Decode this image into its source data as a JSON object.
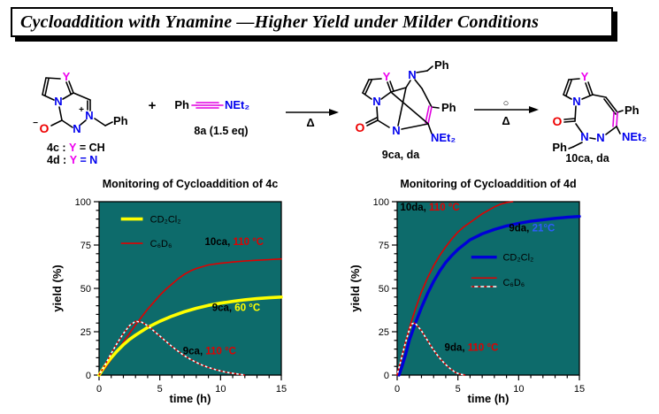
{
  "title": "Cycloaddition with Ynamine —Higher Yield under Milder Conditions",
  "scheme": {
    "mol4": {
      "y_label": "Y",
      "n_ring": "N",
      "n_plus": "N",
      "plus_charge": "+",
      "o_label": "O",
      "minus_charge": "−",
      "ph": "Ph",
      "cap1": {
        "pre": "4c : ",
        "y": "Y",
        "post": " = CH"
      },
      "cap2": {
        "pre": "4d : ",
        "y": "Y",
        "post": " = N"
      }
    },
    "plus": "+",
    "reagent": {
      "ph": "Ph",
      "amine": "NEt₂",
      "caption": "8a (1.5 eq)"
    },
    "arrow1": {
      "below": "Δ"
    },
    "mol9": {
      "y_label": "Y",
      "n_top": "N",
      "n_ring": "N",
      "n_bottom": "N",
      "o_label": "O",
      "ph_top": "Ph",
      "ph_right": "Ph",
      "amine": "NEt₂",
      "caption": "9ca, da"
    },
    "arrow2": {
      "above": "○",
      "below": "Δ"
    },
    "mol10": {
      "y_label": "Y",
      "n_ring": "N",
      "n1": "N",
      "n2": "N",
      "o_label": "O",
      "ph_right": "Ph",
      "ph_benzyl": "Ph",
      "amine": "NEt₂",
      "caption": "10ca, da"
    }
  },
  "chart_data": [
    {
      "type": "line",
      "title": "Monitoring of Cycloaddition of 4c",
      "xlabel": "time (h)",
      "ylabel": "yield (%)",
      "xlim": [
        0,
        15
      ],
      "ylim": [
        0,
        100
      ],
      "xticks": [
        0,
        5,
        10,
        15
      ],
      "x_minor_step": 1,
      "yticks": [
        0,
        25,
        50,
        75,
        100
      ],
      "y_minor_step": 5,
      "plot_bg": "#0d6b6b",
      "series": [
        {
          "name": "10ca at 110 °C in C₆D₆",
          "color": "#e00000",
          "width": 1.6,
          "style": "solid",
          "x": [
            0,
            0.5,
            1,
            1.5,
            2,
            2.5,
            3,
            3.5,
            4,
            4.5,
            5,
            5.5,
            6,
            6.5,
            7,
            7.5,
            8,
            9,
            10,
            11,
            12,
            13,
            14,
            15
          ],
          "y": [
            0,
            4,
            9,
            14,
            19,
            24,
            29,
            33.5,
            38,
            42,
            46,
            49.5,
            52.5,
            55.5,
            58,
            60,
            61.5,
            63.5,
            64.5,
            65.2,
            65.8,
            66.2,
            66.6,
            67
          ]
        },
        {
          "name": "9ca at 60 °C in CD₂Cl₂",
          "color": "#ffff00",
          "width": 3.6,
          "style": "solid",
          "x": [
            0,
            0.5,
            1,
            1.5,
            2,
            2.5,
            3,
            4,
            5,
            6,
            7,
            8,
            9,
            10,
            11,
            12,
            13,
            14,
            15
          ],
          "y": [
            0,
            5.5,
            10,
            14,
            17.5,
            20.5,
            23,
            27.5,
            31,
            34,
            36.5,
            38.5,
            40.2,
            41.5,
            42.5,
            43.4,
            44.1,
            44.6,
            45
          ]
        },
        {
          "name": "9ca at 110 °C in C₆D₆",
          "color": "#e00000",
          "width": 1.6,
          "style": "dashed-white",
          "x": [
            0,
            0.5,
            1,
            1.5,
            2,
            2.5,
            3,
            3.5,
            4,
            4.5,
            5,
            5.5,
            6,
            6.5,
            7,
            7.5,
            8,
            8.5,
            9,
            9.5,
            10,
            10.5,
            11,
            11.5,
            12
          ],
          "y": [
            0,
            6,
            12.5,
            18.5,
            24,
            28.5,
            31,
            30.5,
            28.5,
            25.5,
            22.5,
            19.5,
            16.5,
            13.8,
            11.3,
            9.2,
            7.3,
            5.7,
            4.4,
            3.3,
            2.4,
            1.6,
            1,
            0.5,
            0
          ]
        }
      ],
      "legend": [
        {
          "label": "CD₂Cl₂",
          "color": "#ffff00",
          "width": 3.6,
          "x1": 1.8,
          "x2": 3.6,
          "lx": 4.2,
          "y": 90
        },
        {
          "label": "C₆D₆",
          "color": "#e00000",
          "width": 1.6,
          "x1": 1.8,
          "x2": 3.6,
          "lx": 4.2,
          "y": 76
        }
      ],
      "annotations": [
        {
          "x": 8.7,
          "y": 75,
          "parts": [
            {
              "text": "10ca",
              "color": "#000000"
            },
            {
              "text": ", ",
              "color": "#000000"
            },
            {
              "text": "110 °C",
              "color": "#e00000"
            }
          ]
        },
        {
          "x": 9.3,
          "y": 37,
          "parts": [
            {
              "text": "9ca",
              "color": "#000000"
            },
            {
              "text": ", ",
              "color": "#000000"
            },
            {
              "text": "60 °C",
              "color": "#ffff00"
            }
          ]
        },
        {
          "x": 6.9,
          "y": 12,
          "parts": [
            {
              "text": "9ca",
              "color": "#000000"
            },
            {
              "text": ", ",
              "color": "#000000"
            },
            {
              "text": "110 °C",
              "color": "#e00000"
            }
          ]
        }
      ]
    },
    {
      "type": "line",
      "title": "Monitoring of Cycloaddition of 4d",
      "xlabel": "time (h)",
      "ylabel": "yield (%)",
      "xlim": [
        0,
        15
      ],
      "ylim": [
        0,
        100
      ],
      "xticks": [
        0,
        5,
        10,
        15
      ],
      "x_minor_step": 1,
      "yticks": [
        0,
        25,
        50,
        75,
        100
      ],
      "y_minor_step": 5,
      "plot_bg": "#0d6b6b",
      "series": [
        {
          "name": "10da at 110 °C in C₆D₆",
          "color": "#e00000",
          "width": 1.6,
          "style": "solid",
          "x": [
            0,
            0.25,
            0.5,
            1,
            1.5,
            2,
            2.5,
            3,
            3.5,
            4,
            4.5,
            5,
            5.5,
            6,
            6.5,
            7,
            7.5,
            8,
            8.5,
            9,
            9.5
          ],
          "y": [
            0,
            7,
            14,
            27,
            38,
            48,
            56,
            63,
            69,
            74,
            78.5,
            82.5,
            85.5,
            88,
            90.5,
            93,
            95,
            97,
            98.5,
            99.5,
            100
          ]
        },
        {
          "name": "9da at 21 °C in CD₂Cl₂",
          "color": "#0000d8",
          "width": 3.4,
          "style": "solid",
          "x": [
            0.15,
            0.4,
            0.7,
            1,
            1.5,
            2,
            2.5,
            3,
            3.5,
            4,
            4.5,
            5,
            6,
            7,
            8,
            9,
            10,
            11,
            12,
            13,
            14,
            15
          ],
          "y": [
            0,
            5,
            12,
            20,
            30,
            39,
            47,
            54,
            60,
            65,
            69,
            72.5,
            78,
            81.5,
            84,
            86,
            87.5,
            88.7,
            89.6,
            90.4,
            91,
            91.5
          ]
        },
        {
          "name": "9da at 110 °C in C₆D₆",
          "color": "#e00000",
          "width": 1.6,
          "style": "dashed-white",
          "x": [
            0,
            0.2,
            0.4,
            0.6,
            0.8,
            1,
            1.2,
            1.4,
            1.6,
            2,
            2.4,
            2.8,
            3.2,
            3.6,
            4,
            4.4,
            4.8,
            5.2,
            5.6
          ],
          "y": [
            0,
            5.5,
            11,
            16.5,
            21.5,
            26,
            29.5,
            30,
            29,
            25.5,
            21,
            16.5,
            12.5,
            9,
            6,
            3.5,
            1.5,
            0.5,
            0
          ]
        }
      ],
      "legend": [
        {
          "label": "CD₂Cl₂",
          "color": "#0000d8",
          "width": 3.4,
          "x1": 6.1,
          "x2": 8.2,
          "lx": 8.7,
          "y": 68
        },
        {
          "label": "C₆D₆",
          "color": "#e00000",
          "width": 1.6,
          "x1": 6.1,
          "x2": 8.2,
          "lx": 8.7,
          "y": 56,
          "dashed_y2": 51,
          "label_y": 53.5
        }
      ],
      "annotations": [
        {
          "x": 0.25,
          "y": 95,
          "parts": [
            {
              "text": "10da",
              "color": "#000000"
            },
            {
              "text": ", ",
              "color": "#000000"
            },
            {
              "text": "110 °C",
              "color": "#e00000"
            }
          ]
        },
        {
          "x": 9.2,
          "y": 83,
          "parts": [
            {
              "text": "9da",
              "color": "#000000"
            },
            {
              "text": ", ",
              "color": "#000000"
            },
            {
              "text": "21°C",
              "color": "#2e5cff"
            }
          ]
        },
        {
          "x": 3.9,
          "y": 14,
          "parts": [
            {
              "text": "9da",
              "color": "#000000"
            },
            {
              "text": ", ",
              "color": "#000000"
            },
            {
              "text": "110 °C",
              "color": "#e00000"
            }
          ]
        }
      ]
    }
  ]
}
